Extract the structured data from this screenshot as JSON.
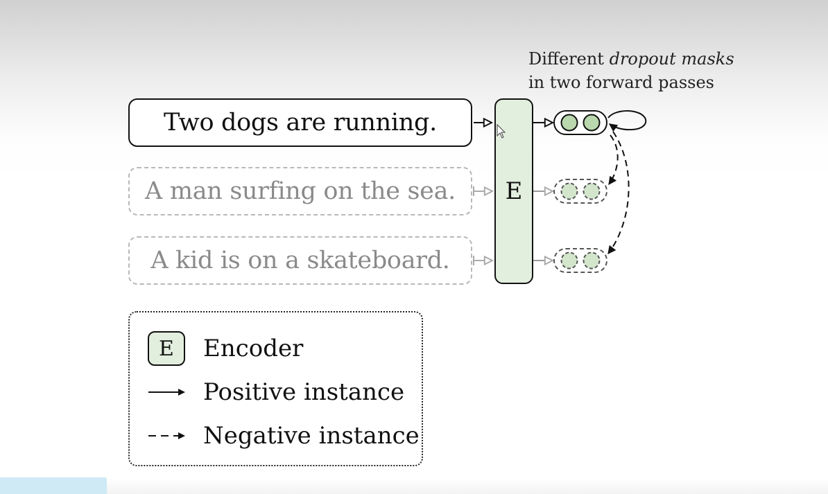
{
  "sentences": [
    {
      "text": "Two dogs are running.",
      "role": "positive"
    },
    {
      "text": "A man surfing on the sea.",
      "role": "negative"
    },
    {
      "text": "A kid is on a skateboard.",
      "role": "negative"
    }
  ],
  "encoder_letter": "E",
  "annotation": {
    "line1_plain": "Different ",
    "line1_italic": "dropout masks",
    "line2": "in two forward passes"
  },
  "legend": {
    "encoder_key": "E",
    "encoder_label": "Encoder",
    "positive_label": "Positive instance",
    "negative_label": "Negative instance"
  },
  "colors": {
    "encoder_fill": "#e2eede",
    "node_fill": "#b9d8ad",
    "negative_gray": "#b8b8b8"
  }
}
